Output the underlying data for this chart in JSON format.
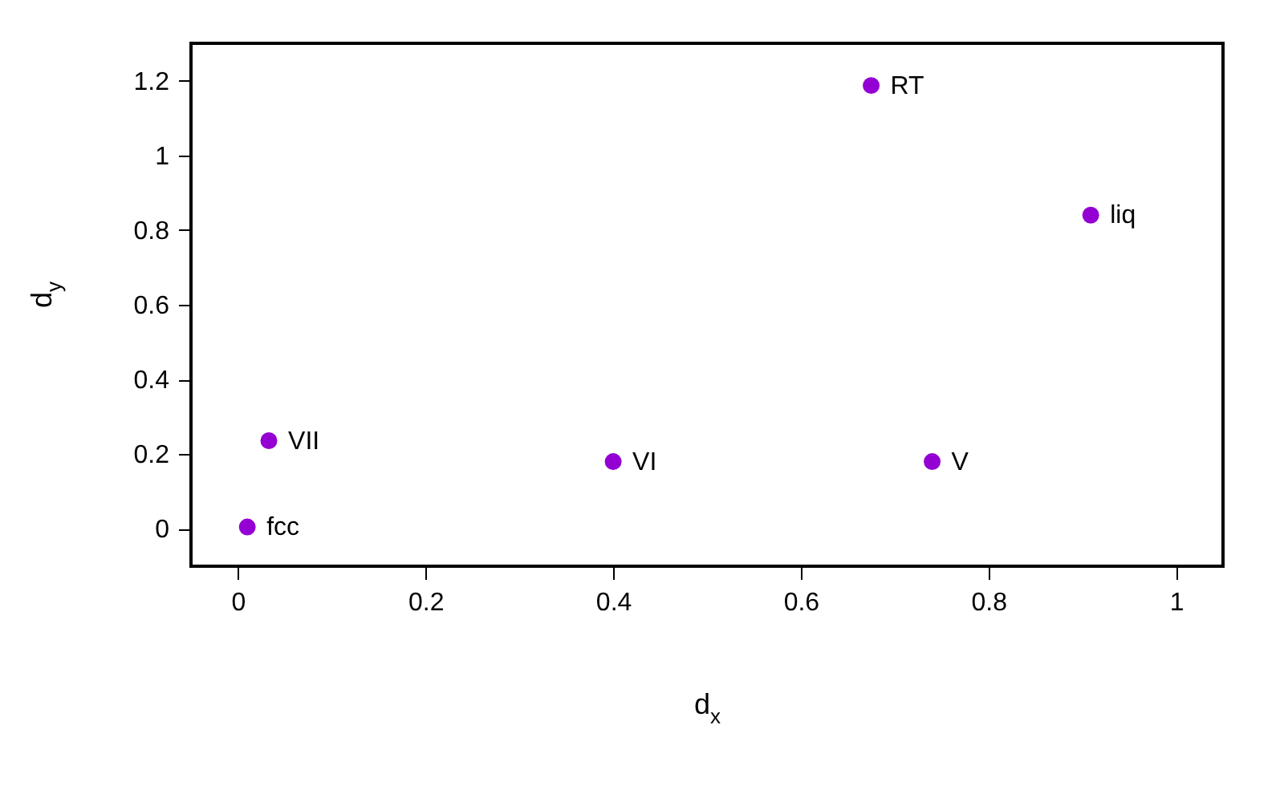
{
  "chart_data": {
    "type": "scatter",
    "xlabel": "d$_{x}$",
    "ylabel": "d$_{y}$",
    "x": [
      0.01,
      0.033,
      0.4,
      0.74,
      0.675,
      0.909
    ],
    "values": [
      0.005,
      0.236,
      0.18,
      0.18,
      1.187,
      0.84
    ],
    "color": "#9400d3",
    "marker": "circle",
    "xlim": [
      -0.05,
      1.05
    ],
    "xticks": [
      0,
      0.2,
      0.4,
      0.6,
      0.8,
      1
    ],
    "ylim": [
      -0.1,
      1.3
    ],
    "yticks": [
      0,
      0.2,
      0.4,
      0.6,
      0.8,
      1,
      1.2
    ],
    "grid": false,
    "annotations": [
      {
        "text": "fcc",
        "x": 0.01,
        "y": 0.005
      },
      {
        "text": "VII",
        "x": 0.033,
        "y": 0.236
      },
      {
        "text": "VI",
        "x": 0.4,
        "y": 0.18
      },
      {
        "text": "V",
        "x": 0.74,
        "y": 0.18
      },
      {
        "text": "RT",
        "x": 0.675,
        "y": 1.187
      },
      {
        "text": "liq",
        "x": 0.909,
        "y": 0.84
      }
    ]
  }
}
